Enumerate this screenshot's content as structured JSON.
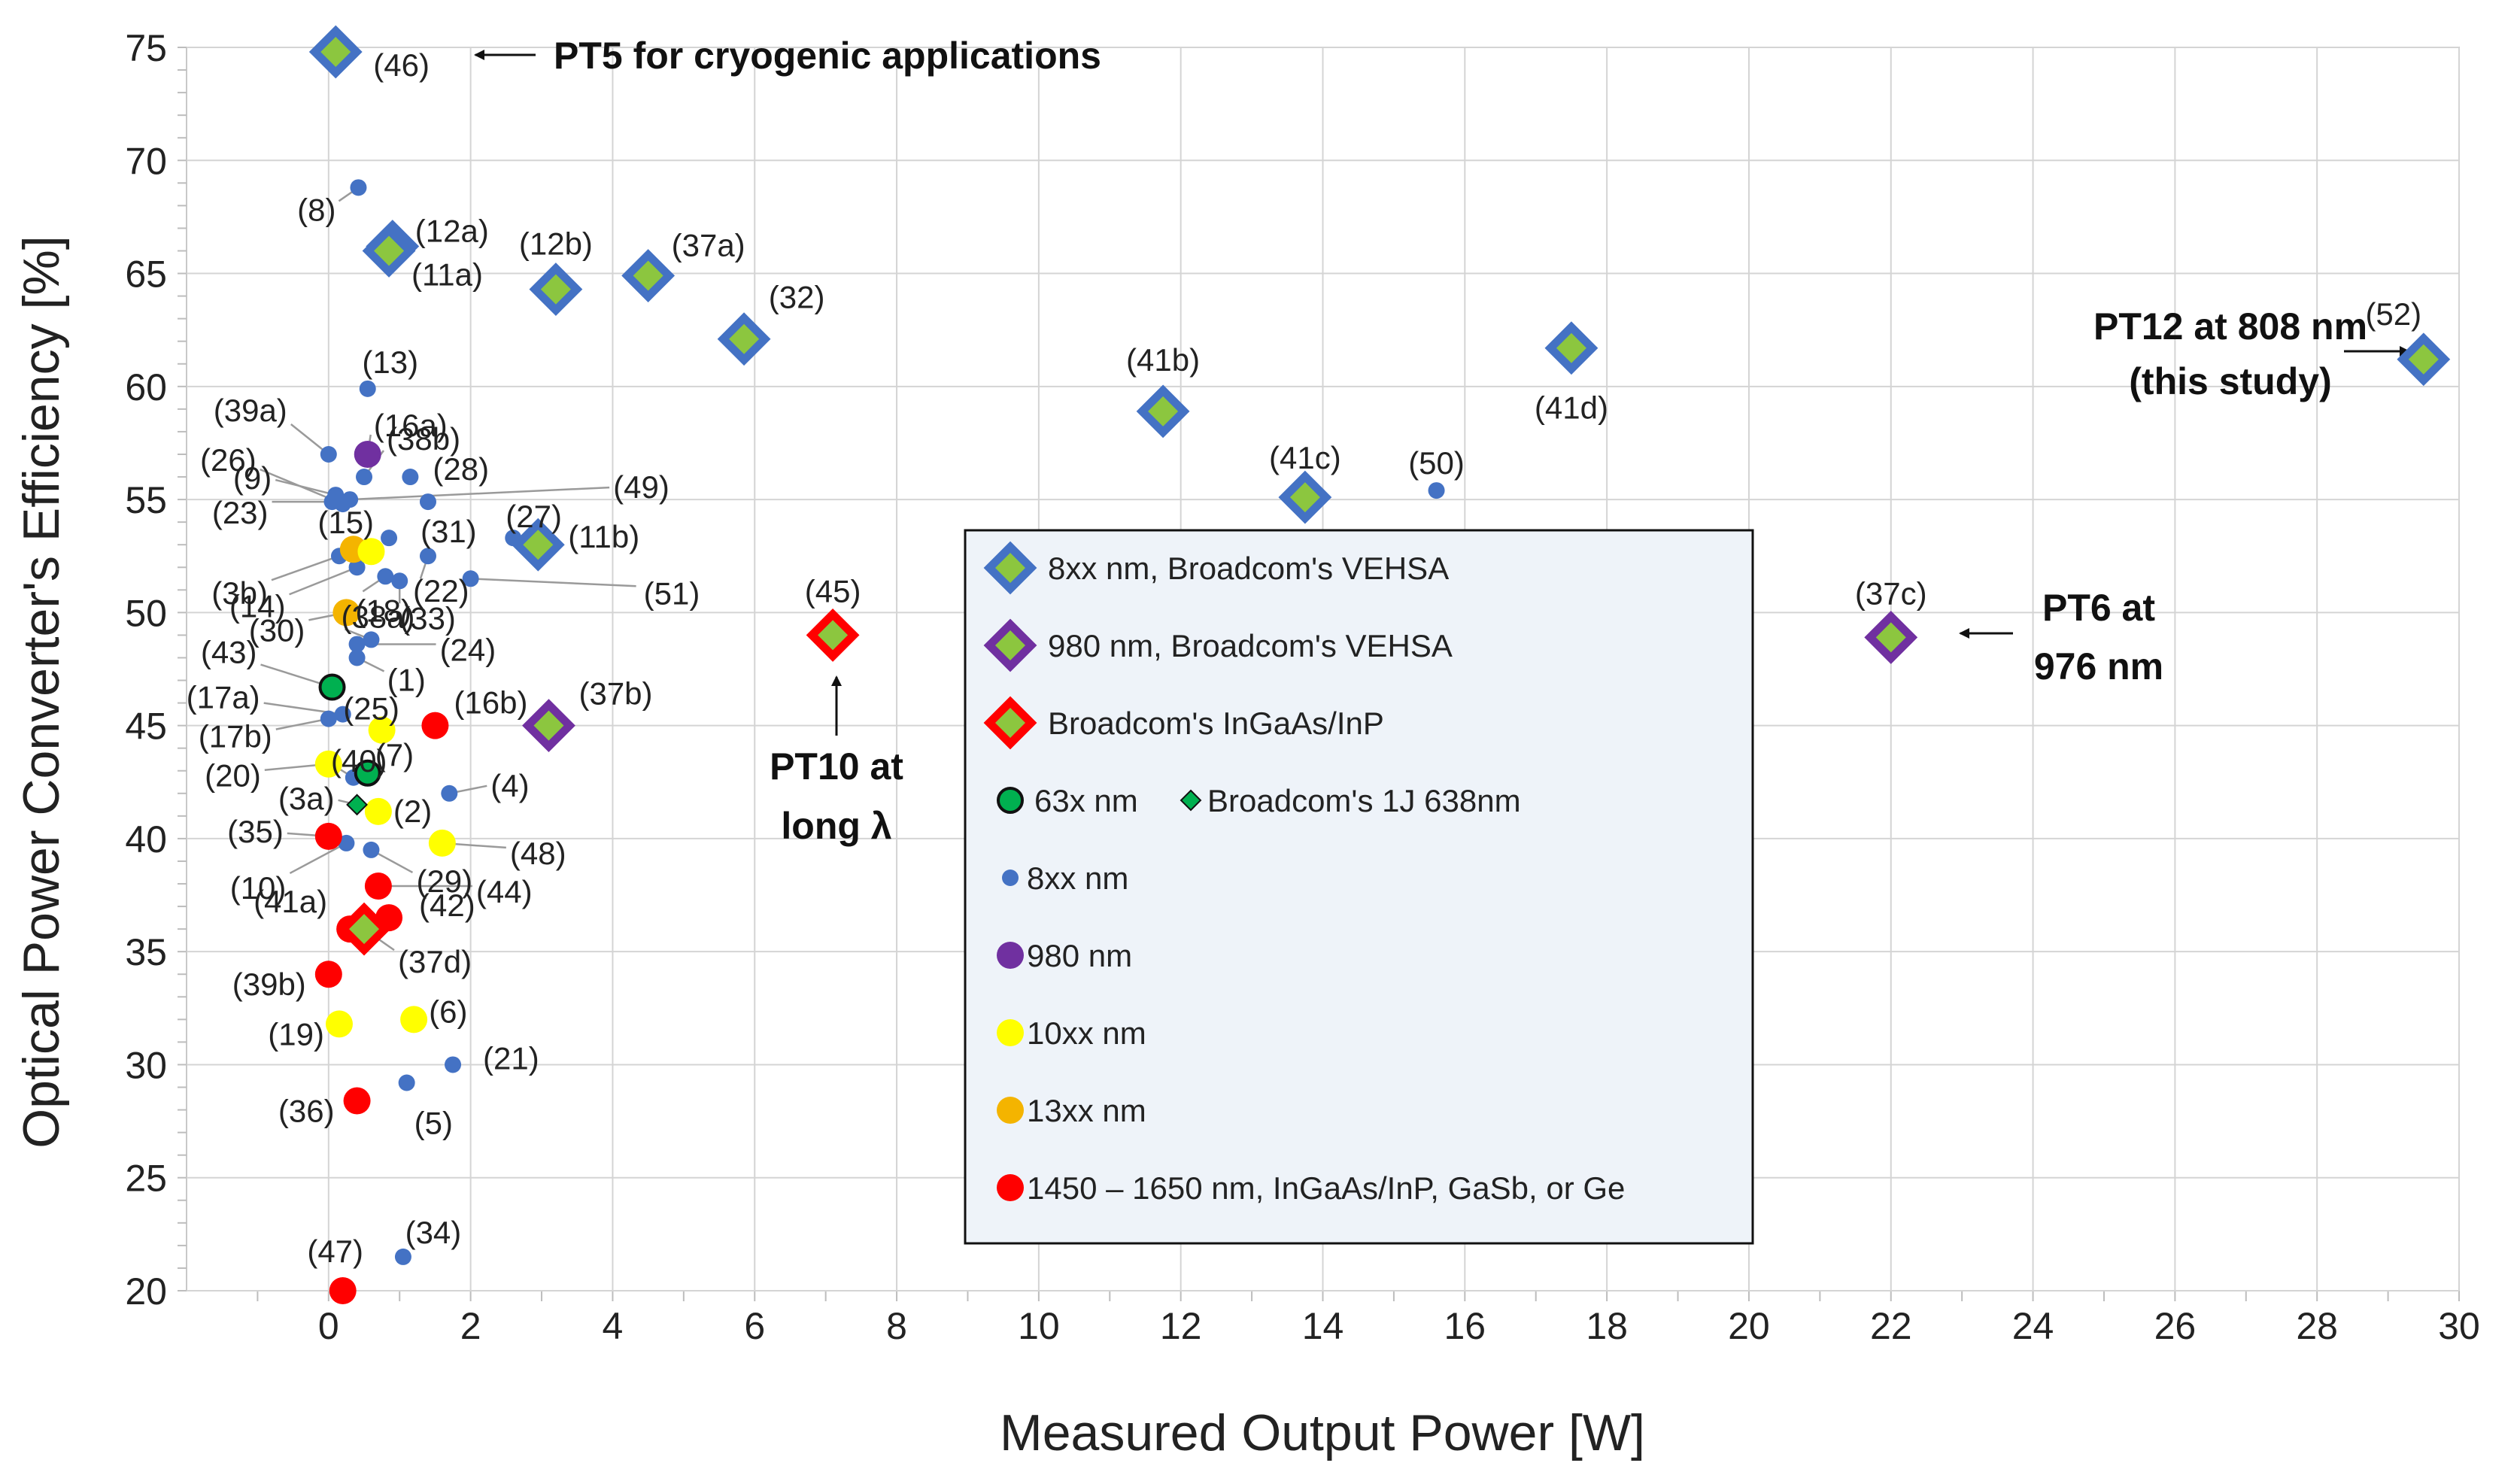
{
  "chart_data": {
    "type": "scatter",
    "xlabel": "Measured Output Power [W]",
    "ylabel": "Optical Power Converter's Efficiency [%]",
    "xlim": [
      -2,
      30
    ],
    "ylim": [
      20,
      75
    ],
    "xticks": [
      "0",
      "2",
      "4",
      "6",
      "8",
      "10",
      "12",
      "14",
      "16",
      "18",
      "20",
      "22",
      "24",
      "26",
      "28",
      "30"
    ],
    "yticks": [
      "20",
      "25",
      "30",
      "35",
      "40",
      "45",
      "50",
      "55",
      "60",
      "65",
      "70",
      "75"
    ],
    "colors": {
      "blue": "#4472C4",
      "green": "#8CC63F",
      "purple": "#7030A0",
      "red": "#FF0000",
      "yellow": "#FFFF00",
      "orange": "#F4B400",
      "green_dark": "#00B050",
      "legend_bg": "#EEF3F9"
    },
    "legend": {
      "items": [
        {
          "marker": "diamond-blue",
          "label": "8xx nm, Broadcom's VEHSA"
        },
        {
          "marker": "diamond-purple",
          "label": "980 nm, Broadcom's VEHSA"
        },
        {
          "marker": "diamond-red",
          "label": "Broadcom's InGaAs/InP"
        },
        {
          "marker": "circle-green",
          "label": "63x nm",
          "marker2": "diamond-small",
          "label2": "Broadcom's 1J 638nm"
        },
        {
          "marker": "dot-blue",
          "label": "8xx nm"
        },
        {
          "marker": "dot-purple",
          "label": "980 nm"
        },
        {
          "marker": "dot-yellow",
          "label": "10xx nm"
        },
        {
          "marker": "dot-orange",
          "label": "13xx nm"
        },
        {
          "marker": "dot-red",
          "label": "1450 – 1650 nm, InGaAs/InP, GaSb, or Ge"
        }
      ]
    },
    "annotations": [
      {
        "text": "PT5 for cryogenic applications"
      },
      {
        "text": "PT12 at 808 nm",
        "text2": "(this study)"
      },
      {
        "text": "PT6 at",
        "text2": "976 nm"
      },
      {
        "text": "PT10 at",
        "text2": "long λ"
      }
    ],
    "series": [
      {
        "name": "8xx nm, Broadcom's VEHSA",
        "marker": "diamond-blue",
        "points": [
          {
            "x": 0.1,
            "y": 74.8,
            "label": "(46)"
          },
          {
            "x": 0.9,
            "y": 66.2,
            "label": "(12a)"
          },
          {
            "x": 0.85,
            "y": 66.0,
            "label": "(11a)"
          },
          {
            "x": 3.2,
            "y": 64.3,
            "label": "(12b)"
          },
          {
            "x": 4.5,
            "y": 64.9,
            "label": "(37a)"
          },
          {
            "x": 5.85,
            "y": 62.1,
            "label": "(32)"
          },
          {
            "x": 11.75,
            "y": 58.9,
            "label": "(41b)"
          },
          {
            "x": 13.75,
            "y": 55.1,
            "label": "(41c)"
          },
          {
            "x": 17.5,
            "y": 61.7,
            "label": "(41d)"
          },
          {
            "x": 29.5,
            "y": 61.2,
            "label": "(52)"
          },
          {
            "x": 2.95,
            "y": 53.0,
            "label": "(11b)"
          }
        ]
      },
      {
        "name": "980 nm, Broadcom's VEHSA",
        "marker": "diamond-purple",
        "points": [
          {
            "x": 3.1,
            "y": 45.0,
            "label": "(37b)"
          },
          {
            "x": 22.0,
            "y": 48.9,
            "label": "(37c)"
          }
        ]
      },
      {
        "name": "Broadcom's InGaAs/InP",
        "marker": "diamond-red",
        "points": [
          {
            "x": 7.1,
            "y": 49.0,
            "label": "(45)"
          },
          {
            "x": 0.5,
            "y": 36.0,
            "label": "(37d)"
          }
        ]
      },
      {
        "name": "Broadcom's 1J 638nm",
        "marker": "diamond-small",
        "points": [
          {
            "x": 0.4,
            "y": 41.5,
            "label": "(3a)"
          }
        ]
      },
      {
        "name": "63x nm",
        "marker": "circle-green",
        "points": [
          {
            "x": 0.05,
            "y": 46.7,
            "label": "(43)"
          },
          {
            "x": 0.55,
            "y": 42.9,
            "label": "(7)"
          }
        ]
      },
      {
        "name": "8xx nm",
        "marker": "dot-blue",
        "points": [
          {
            "x": 0.42,
            "y": 68.8,
            "label": "(8)"
          },
          {
            "x": 0.55,
            "y": 59.9,
            "label": "(13)"
          },
          {
            "x": 0.0,
            "y": 57.0,
            "label": "(39a)"
          },
          {
            "x": 0.5,
            "y": 56.0,
            "label": "(38b)"
          },
          {
            "x": 0.2,
            "y": 54.8,
            "label": "(26)"
          },
          {
            "x": 0.1,
            "y": 55.2,
            "label": "(9)"
          },
          {
            "x": 1.15,
            "y": 56.0,
            "label": "(28)"
          },
          {
            "x": 0.05,
            "y": 54.9,
            "label": "(23)"
          },
          {
            "x": 1.4,
            "y": 54.9,
            "label": "(31)"
          },
          {
            "x": 0.85,
            "y": 53.3,
            "label": "(15)"
          },
          {
            "x": 0.15,
            "y": 52.5,
            "label": "(3b)"
          },
          {
            "x": 2.6,
            "y": 53.3,
            "label": "(27)"
          },
          {
            "x": 1.4,
            "y": 52.5,
            "label": "(22)"
          },
          {
            "x": 0.4,
            "y": 52.0,
            "label": "(14)"
          },
          {
            "x": 0.8,
            "y": 51.6,
            "label": "(18)"
          },
          {
            "x": 1.0,
            "y": 51.4,
            "label": "(33)"
          },
          {
            "x": 2.0,
            "y": 51.5,
            "label": "(51)"
          },
          {
            "x": 15.6,
            "y": 55.4,
            "label": "(50)"
          },
          {
            "x": 0.6,
            "y": 48.8,
            "label": "(38a)"
          },
          {
            "x": 0.4,
            "y": 48.6,
            "label": "(24)"
          },
          {
            "x": 0.4,
            "y": 48.0,
            "label": "(1)"
          },
          {
            "x": 0.2,
            "y": 45.5,
            "label": "(17a)"
          },
          {
            "x": 0.0,
            "y": 45.3,
            "label": "(17b)"
          },
          {
            "x": 0.35,
            "y": 42.7,
            "label": "(40)"
          },
          {
            "x": 1.7,
            "y": 42.0,
            "label": "(4)"
          },
          {
            "x": 0.6,
            "y": 39.5,
            "label": "(29)"
          },
          {
            "x": 0.25,
            "y": 39.8,
            "label": "(10)"
          },
          {
            "x": 1.75,
            "y": 30.0,
            "label": "(21)"
          },
          {
            "x": 1.1,
            "y": 29.2,
            "label": "(5)"
          },
          {
            "x": 1.05,
            "y": 21.5,
            "label": "(34)"
          }
        ]
      },
      {
        "name": "980 nm",
        "marker": "dot-purple",
        "points": [
          {
            "x": 0.55,
            "y": 57.0,
            "label": "(16a)"
          }
        ]
      },
      {
        "name": "10xx nm",
        "marker": "dot-yellow",
        "points": [
          {
            "x": 0.6,
            "y": 52.7,
            "label": ""
          },
          {
            "x": 0.75,
            "y": 44.8,
            "label": "(25)"
          },
          {
            "x": 0.0,
            "y": 43.3,
            "label": "(20)"
          },
          {
            "x": 0.7,
            "y": 41.2,
            "label": "(2)"
          },
          {
            "x": 1.6,
            "y": 39.8,
            "label": "(48)"
          },
          {
            "x": 0.15,
            "y": 31.8,
            "label": "(19)"
          },
          {
            "x": 1.2,
            "y": 32.0,
            "label": "(6)"
          }
        ]
      },
      {
        "name": "13xx nm",
        "marker": "dot-orange",
        "points": [
          {
            "x": 0.35,
            "y": 52.8,
            "label": ""
          },
          {
            "x": 0.25,
            "y": 50.0,
            "label": "(30)"
          }
        ]
      },
      {
        "name": "1450 – 1650 nm, InGaAs/InP, GaSb, or Ge",
        "marker": "dot-red",
        "points": [
          {
            "x": 1.5,
            "y": 45.0,
            "label": "(16b)"
          },
          {
            "x": 0.0,
            "y": 40.1,
            "label": "(35)"
          },
          {
            "x": 0.7,
            "y": 37.9,
            "label": "(44)"
          },
          {
            "x": 0.85,
            "y": 36.5,
            "label": "(42)"
          },
          {
            "x": 0.3,
            "y": 36.0,
            "label": "(41a)"
          },
          {
            "x": 0.0,
            "y": 34.0,
            "label": "(39b)"
          },
          {
            "x": 0.4,
            "y": 28.4,
            "label": "(36)"
          },
          {
            "x": 0.2,
            "y": 20.0,
            "label": "(47)"
          }
        ]
      },
      {
        "name": "unlabeled",
        "marker": "dot-blue",
        "points": [
          {
            "x": 0.3,
            "y": 55.0,
            "label": "(49)"
          }
        ]
      }
    ]
  }
}
